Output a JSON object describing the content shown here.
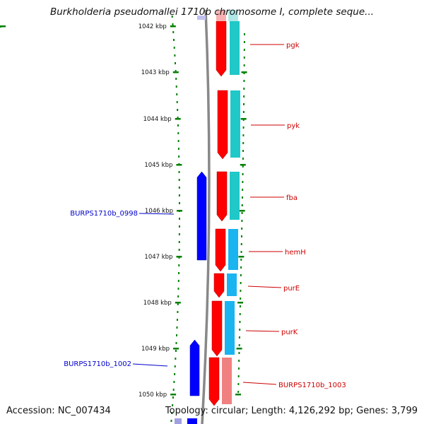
{
  "title": "Burkholderia pseudomallei 1710b chromosome I, complete seque...",
  "accession": "Accession: NC_007434",
  "topology": "Topology: circular; Length: 4,126,292 bp; Genes: 3,799",
  "ruler": {
    "unit": "kbp",
    "ticks": [
      "1042 kbp",
      "1043 kbp",
      "1044 kbp",
      "1045 kbp",
      "1046 kbp",
      "1047 kbp",
      "1048 kbp",
      "1049 kbp",
      "1050 kbp"
    ]
  },
  "genes": [
    {
      "label": "pgk",
      "side": "right",
      "strand": "forward",
      "color": "#ff0000",
      "track_color": "#20c8c8"
    },
    {
      "label": "pyk",
      "side": "right",
      "strand": "forward",
      "color": "#ff0000",
      "track_color": "#20c8c8"
    },
    {
      "label": "fba",
      "side": "right",
      "strand": "forward",
      "color": "#ff0000",
      "track_color": "#20c8c8"
    },
    {
      "label": "hemH",
      "side": "right",
      "strand": "forward",
      "color": "#ff0000",
      "track_color": "#1ab4f0"
    },
    {
      "label": "purE",
      "side": "right",
      "strand": "forward",
      "color": "#ff0000",
      "track_color": "#1ab4f0"
    },
    {
      "label": "purK",
      "side": "right",
      "strand": "forward",
      "color": "#ff0000",
      "track_color": "#1ab4f0"
    },
    {
      "label": "BURPS1710b_1003",
      "side": "right",
      "strand": "forward",
      "color": "#ff0000",
      "track_color": "#f08080"
    },
    {
      "label": "BURPS1710b_0998",
      "side": "left",
      "strand": "reverse",
      "color": "#0000ff"
    },
    {
      "label": "BURPS1710b_1002",
      "side": "left",
      "strand": "reverse",
      "color": "#0000ff"
    }
  ],
  "colors": {
    "forward_gene": "#ff0000",
    "reverse_gene": "#0000ff",
    "backbone": "#888888",
    "ruler": "#008000",
    "label_forward": "#cc0000",
    "label_reverse": "#0000cc"
  }
}
